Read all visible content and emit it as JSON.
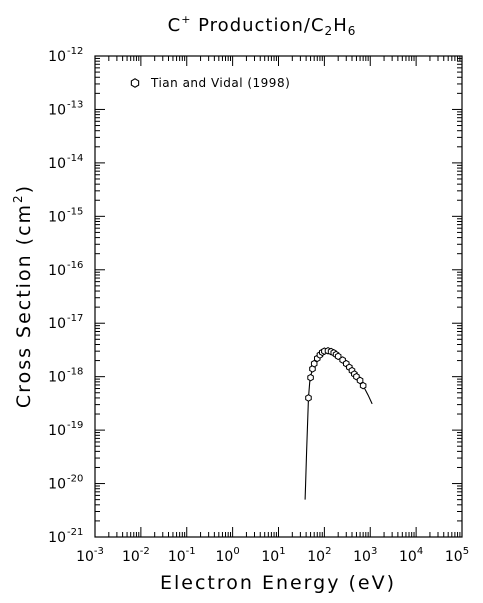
{
  "chart_data": {
    "type": "scatter",
    "title": {
      "text_parts": [
        {
          "text": "C",
          "sup": "+"
        },
        {
          "text": " Production/C"
        },
        {
          "text": "",
          "sub": "2"
        },
        {
          "text": "H"
        },
        {
          "text": "",
          "sub": "6"
        }
      ],
      "plain": "C+ Production/C2H6"
    },
    "xlabel": "Electron Energy (eV)",
    "ylabel": "Cross Section (cm2)",
    "ylabel_parts": {
      "base": "Cross Section (cm",
      "sup": "2",
      "tail": ")"
    },
    "x_scale": "log",
    "y_scale": "log",
    "xlim": [
      0.001,
      100000
    ],
    "ylim": [
      1e-21,
      1e-12
    ],
    "x_ticks": [
      {
        "base": "10",
        "exp": "-3",
        "value": 0.001
      },
      {
        "base": "10",
        "exp": "-2",
        "value": 0.01
      },
      {
        "base": "10",
        "exp": "-1",
        "value": 0.1
      },
      {
        "base": "10",
        "exp": "0",
        "value": 1
      },
      {
        "base": "10",
        "exp": "1",
        "value": 10
      },
      {
        "base": "10",
        "exp": "2",
        "value": 100
      },
      {
        "base": "10",
        "exp": "3",
        "value": 1000
      },
      {
        "base": "10",
        "exp": "4",
        "value": 10000
      },
      {
        "base": "10",
        "exp": "5",
        "value": 100000
      }
    ],
    "y_ticks": [
      {
        "base": "10",
        "exp": "-21",
        "value": 1e-21
      },
      {
        "base": "10",
        "exp": "-20",
        "value": 1e-20
      },
      {
        "base": "10",
        "exp": "-19",
        "value": 1e-19
      },
      {
        "base": "10",
        "exp": "-18",
        "value": 1e-18
      },
      {
        "base": "10",
        "exp": "-17",
        "value": 1e-17
      },
      {
        "base": "10",
        "exp": "-16",
        "value": 1e-16
      },
      {
        "base": "10",
        "exp": "-15",
        "value": 1e-15
      },
      {
        "base": "10",
        "exp": "-14",
        "value": 1e-14
      },
      {
        "base": "10",
        "exp": "-13",
        "value": 1e-13
      },
      {
        "base": "10",
        "exp": "-12",
        "value": 1e-12
      }
    ],
    "grid": false,
    "legend": {
      "position": "top-left",
      "marker": "hexagon"
    },
    "series": [
      {
        "name": "Tian and Vidal (1998)",
        "kind": "markers",
        "marker": "hexagon",
        "points": [
          {
            "x": 45,
            "y": 4e-19
          },
          {
            "x": 50,
            "y": 9.6e-19
          },
          {
            "x": 55,
            "y": 1.4e-18
          },
          {
            "x": 60,
            "y": 1.75e-18
          },
          {
            "x": 70,
            "y": 2.2e-18
          },
          {
            "x": 80,
            "y": 2.55e-18
          },
          {
            "x": 90,
            "y": 2.85e-18
          },
          {
            "x": 100,
            "y": 3e-18
          },
          {
            "x": 120,
            "y": 3.05e-18
          },
          {
            "x": 140,
            "y": 2.95e-18
          },
          {
            "x": 160,
            "y": 2.8e-18
          },
          {
            "x": 180,
            "y": 2.6e-18
          },
          {
            "x": 200,
            "y": 2.4e-18
          },
          {
            "x": 250,
            "y": 2.05e-18
          },
          {
            "x": 300,
            "y": 1.75e-18
          },
          {
            "x": 350,
            "y": 1.5e-18
          },
          {
            "x": 400,
            "y": 1.3e-18
          },
          {
            "x": 450,
            "y": 1.12e-18
          },
          {
            "x": 500,
            "y": 1e-18
          },
          {
            "x": 600,
            "y": 8.5e-19
          },
          {
            "x": 700,
            "y": 6.8e-19
          }
        ]
      },
      {
        "name": "",
        "kind": "line",
        "points": [
          {
            "x": 38,
            "y": 5e-21
          },
          {
            "x": 39,
            "y": 1e-20
          },
          {
            "x": 41,
            "y": 4e-20
          },
          {
            "x": 43,
            "y": 1.3e-19
          },
          {
            "x": 45,
            "y": 4e-19
          },
          {
            "x": 48,
            "y": 8e-19
          },
          {
            "x": 52,
            "y": 1.15e-18
          },
          {
            "x": 60,
            "y": 1.75e-18
          },
          {
            "x": 70,
            "y": 2.2e-18
          },
          {
            "x": 80,
            "y": 2.55e-18
          },
          {
            "x": 100,
            "y": 3e-18
          },
          {
            "x": 120,
            "y": 3.05e-18
          },
          {
            "x": 150,
            "y": 2.9e-18
          },
          {
            "x": 200,
            "y": 2.4e-18
          },
          {
            "x": 300,
            "y": 1.75e-18
          },
          {
            "x": 400,
            "y": 1.3e-18
          },
          {
            "x": 500,
            "y": 1e-18
          },
          {
            "x": 700,
            "y": 6.8e-19
          },
          {
            "x": 900,
            "y": 4.5e-19
          },
          {
            "x": 1100,
            "y": 3.1e-19
          }
        ]
      }
    ]
  }
}
